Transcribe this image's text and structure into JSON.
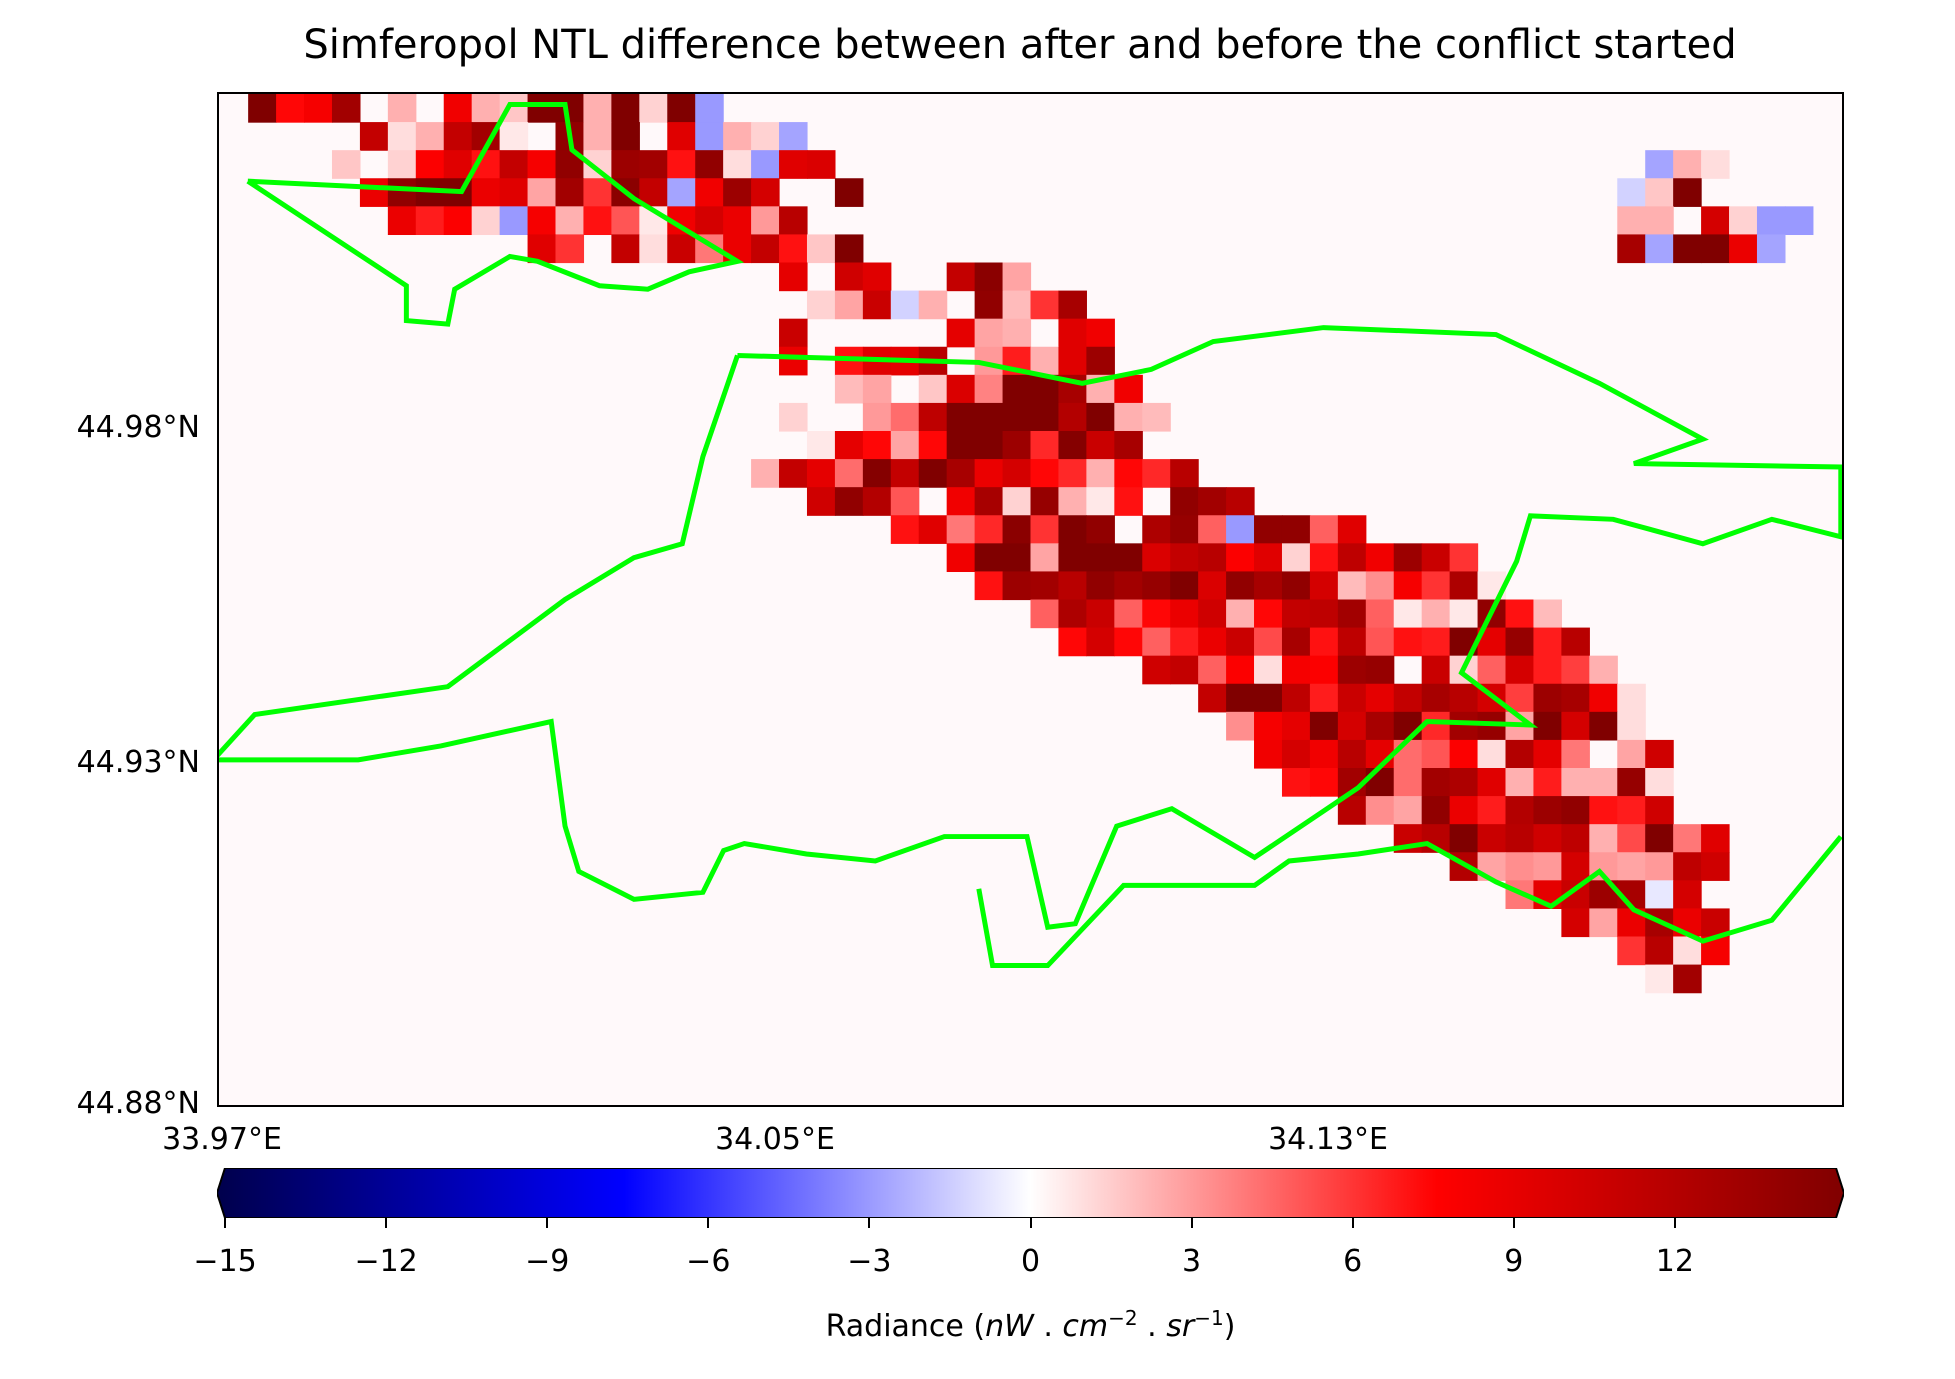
{
  "title": "Simferopol NTL difference between after and before the conflict started",
  "lat_ticks": [
    "44.98°N",
    "44.93°N",
    "44.88°N"
  ],
  "lon_ticks": [
    "33.97°E",
    "34.05°E",
    "34.13°E"
  ],
  "colorbar": {
    "label_prefix": "Radiance (",
    "label_nw": "nW",
    "label_cm": "cm",
    "label_cm_exp": "−2",
    "label_sr": "sr",
    "label_sr_exp": "−1",
    "label_suffix": ")",
    "ticks": [
      "−15",
      "−12",
      "−9",
      "−6",
      "−3",
      "0",
      "3",
      "6",
      "9",
      "12"
    ],
    "range": [
      -15,
      15
    ],
    "colormap": "seismic",
    "colors": {
      "min": "#00004c",
      "mid": "#ffffff",
      "max": "#800000"
    }
  },
  "boundary_color": "#00ff00",
  "grid": {
    "cols": 58,
    "rows": 36,
    "lon_range": [
      33.97,
      34.205
    ],
    "lat_range": [
      44.88,
      45.025
    ],
    "cells": [
      "~iIKZ~:4L:8ww:z7z*~~~~~~~~~~~~~~~~~~~~~~~~~~~~~~~~~~~~~~~~",
      "~~~~~T6:TZ5~]:c4O*:7+~~~~~~~~~~~~~~~~~~~~~~~~~~~~~~~~~~~~~",
      "~~~~8~7JOHTK]7[ZH]6*OP~~~~~~~~~~~~~~~~~~~~~~~~~~~~~+:6~~~~",
      "~~~~~M]ggMO;ZE^T+L[Q~~o~~~~~~~~~~~~~~~~~~~~~~~~~~~/8e2~~~~",
      "~~~~~~MGJ7*K:HB5LQM<V3~~~~~~~~~~~~~~~~~~~~~~~~~~~~::2Q7**~",
      "~~~~~~~~~~~OE~T6S?MTH8e~~~~~~~~~~~~~~~~~~~~~~~~~~~Y+mmM+~~",
      "~~~~~~~~~~~~~~~~~~~~N4RO33T^;~~~~~~~~~~~~~~~~~~~~~~~~~~~~~",
      "~~~~~~~~~~~~~~~~~~~~~7;S/:3]9EY~~~~~~~~~~~~~~~~~~~~~~~~~~~",
      "~~~~~~~~~~~~~~~~~~~~S~~~~~N;:4OL~~~~~~~~~~~~~~~~~~~~~~~~~~",
      "~~~~~~~~~~~~~~~~~~~~M4HONV4<G:O[~~~~~~~~~~~~~~~~~~~~~~~~~~",
      "~~~~~~~~~~~~~~~~~~~~4~9;~8P>bhY:L~~~~~~~~~~~~~~~~~~~~~~~~~",
      "~~~~~~~~~~~~~~~~~~~~7~~<@U`bfcWb:9~~~~~~~~~~~~~~~~~~~~~~~~",
      "~~~~~~~~~~~~~~~~~~~~~5NI;Icd[F_SY~~~~~~~~~~~~~~~~~~~~~~~~~",
      "~~~~~~~~~~~~~~~~~~~:TN@_TeYMQIF:IFV2~~~~~~~~~~~~~~~~~~~~~~",
      "~~~~~~~~~~~~~~~~~~~~~R]WB3LY7\\:5H3]ZV~~~~~~~~~~~~~~~~~~~~~",
      "~~~~~~~~~~~~~~~~~~~~~~~~HO?F^Ea]2X\\A*]]AO~~~~~~~~~~~~~~~~~",
      "~~~~~~~~~~~~~~~~~~~~~~~~~~Ldf;dcbPTVJO7HUL[SE~~~~~~~~~~~~~~",
      "~~~~~~~~~~~~~~~~~~~~~~~~~~~H[ZV]Z\\`P]Y]Q9=KEX5~~~~~~~~~~~~~",
      "~~~~~~~~~~~~~~~~~~~~~~~~~~~~~AXSAIMR:ITUZA5:5]H9~~~~~~~~~~~",
      "~~~~~~~~~~~~~~~~~~~~~~~~~~~~~~IQIAGMSCYHUBHGaN\\GV~~~~~~~~~~",
      "~~~~~~~~~~~~~~~~~~~~~~~~~~~~~~~~~RTAJ6KJ[\\2S7AQGD:~~~~~~~~~",
      "~~~~~~~~~~~~~~~~~~~~~~~~~~~~~~~~~~~TfbUGSNTYVQD[YL6~~~~~~~~",
      "~~~~~~~~~~~~~~~~~~~~~~~~~~~~~~~~~~~~=KNaQYdFZ\\;bQ`6~~~~~~~~",
      "~~~~~~~~~~~~~~~~~~~~~~~~~~~~~~~~~~~~~LQLVN@BJ6WN?4;R~~~~~~~",
      "~~~~~~~~~~~~~~~~~~~~~~~~~~~~~~~~~~~~~~HIZb@ZXO:G::\\6~~~~~~~",
      "~~~~~~~~~~~~~~~~~~~~~~~~~~~~~~~~~~~~~~~~V=;]MGW[]HGR~~~~~~~",
      "~~~~~~~~~~~~~~~~~~~~~~~~~~~~~~~~~~~~~~~~~~SVbSVRU:Ca?O~~~~~",
      "~~~~~~~~~~~~~~~~~~~~~~~~~~~~~~~~~~~~~~~~~~~~W;=<Q<;<UR~~~~~",
      "~~~~~~~~~~~~~~~~~~~~~~~~~~~~~~~~~~~~~~~~~~~~~~?NS[Y1Q4~~~~~",
      "~~~~~~~~~~~~~~~~~~~~~~~~~~~~~~~~~~~~~~~~~~~~~~~~Q;MYMS~~~~~",
      "~~~~~~~~~~~~~~~~~~~~~~~~~~~~~~~~~~~~~~~~~~~~~~~~~4EV6K~~~~~",
      "~~~~~~~~~~~~~~~~~~~~~~~~~~~~~~~~~~~~~~~~~~~~~~~~~~~5Z~~~~~",
      "~~~~~~~~~~~~~~~~~~~~~~~~~~~~~~~~~~~~~~~~~~~~~~~~~~~~~~~~~~",
      "~~~~~~~~~~~~~~~~~~~~~~~~~~~~~~~~~~~~~~~~~~~~~~~~~~~~~~~~~~",
      "~~~~~~~~~~~~~~~~~~~~~~~~~~~~~~~~~~~~~~~~~~~~~~~~~~~~~~~~~~",
      "~~~~~~~~~~~~~~~~~~~~~~~~~~~~~~~~~~~~~~~~~~~~~~~~~~~~~~~~~~"
    ]
  },
  "boundaries": [
    {
      "name": "north-west",
      "points": [
        [
          33.974,
          45.0125
        ],
        [
          34.005,
          45.011
        ],
        [
          34.012,
          45.0235
        ],
        [
          34.02,
          45.0235
        ],
        [
          34.021,
          45.017
        ],
        [
          34.03,
          45.01
        ],
        [
          34.045,
          45.001
        ],
        [
          34.038,
          44.9995
        ],
        [
          34.032,
          44.997
        ],
        [
          34.025,
          44.9975
        ],
        [
          34.016,
          45.001
        ],
        [
          34.012,
          45.0017
        ],
        [
          34.004,
          44.997
        ],
        [
          34.003,
          44.992
        ],
        [
          33.997,
          44.9925
        ],
        [
          33.997,
          44.9975
        ],
        [
          33.974,
          45.0125
        ]
      ]
    },
    {
      "name": "city",
      "points": [
        [
          34.045,
          44.9875
        ],
        [
          34.08,
          44.9865
        ],
        [
          34.095,
          44.9835
        ],
        [
          34.105,
          44.9855
        ],
        [
          34.114,
          44.9895
        ],
        [
          34.13,
          44.9915
        ],
        [
          34.155,
          44.9905
        ],
        [
          34.17,
          44.9835
        ],
        [
          34.185,
          44.9755
        ],
        [
          34.175,
          44.972
        ],
        [
          34.205,
          44.9715
        ],
        [
          34.205,
          44.9615
        ],
        [
          34.195,
          44.964
        ],
        [
          34.185,
          44.9605
        ],
        [
          34.172,
          44.964
        ],
        [
          34.16,
          44.9645
        ],
        [
          34.158,
          44.958
        ],
        [
          34.15,
          44.942
        ],
        [
          34.16,
          44.9345
        ],
        [
          34.145,
          44.935
        ],
        [
          34.135,
          44.9255
        ],
        [
          34.12,
          44.9155
        ],
        [
          34.108,
          44.9225
        ],
        [
          34.1,
          44.92
        ],
        [
          34.094,
          44.906
        ],
        [
          34.09,
          44.9055
        ],
        [
          34.087,
          44.9185
        ],
        [
          34.075,
          44.9185
        ],
        [
          34.065,
          44.915
        ],
        [
          34.055,
          44.916
        ],
        [
          34.046,
          44.9175
        ],
        [
          34.043,
          44.9165
        ],
        [
          34.04,
          44.9105
        ],
        [
          34.03,
          44.9095
        ],
        [
          34.022,
          44.9135
        ],
        [
          34.02,
          44.92
        ],
        [
          34.018,
          44.935
        ],
        [
          34.002,
          44.9315
        ],
        [
          33.99,
          44.9295
        ],
        [
          33.969,
          44.9295
        ],
        [
          33.975,
          44.936
        ],
        [
          34.003,
          44.94
        ],
        [
          34.02,
          44.9525
        ],
        [
          34.03,
          44.9585
        ],
        [
          34.037,
          44.9605
        ],
        [
          34.04,
          44.973
        ],
        [
          34.045,
          44.9875
        ]
      ]
    },
    {
      "name": "south",
      "points": [
        [
          34.08,
          44.911
        ],
        [
          34.082,
          44.9
        ],
        [
          34.09,
          44.9
        ],
        [
          34.101,
          44.9115
        ],
        [
          34.12,
          44.9115
        ],
        [
          34.125,
          44.915
        ],
        [
          34.135,
          44.916
        ],
        [
          34.145,
          44.9175
        ],
        [
          34.155,
          44.912
        ],
        [
          34.163,
          44.9085
        ],
        [
          34.17,
          44.9135
        ],
        [
          34.175,
          44.908
        ],
        [
          34.185,
          44.9035
        ],
        [
          34.195,
          44.9065
        ],
        [
          34.205,
          44.9185
        ]
      ]
    }
  ]
}
